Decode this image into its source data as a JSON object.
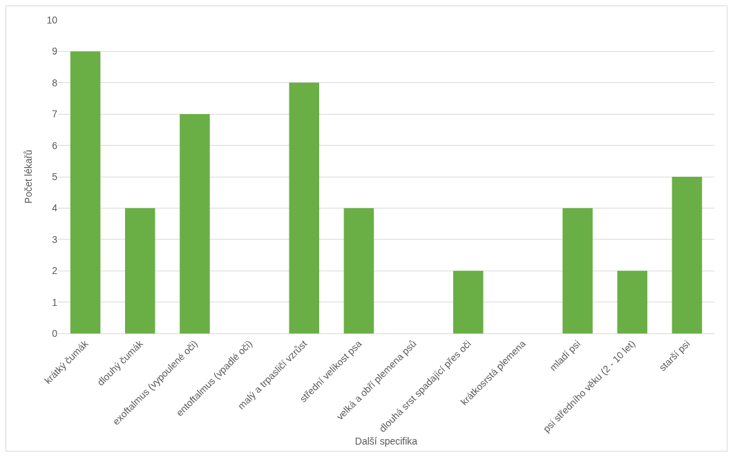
{
  "chart_data": {
    "type": "bar",
    "xlabel": "Další specifika",
    "ylabel": "Počet lékařů",
    "categories": [
      "krátký čumák",
      "dlouhý čumák",
      "exoftalmus (vypoulené oči)",
      "entoftalmus (vpadlé oči)",
      "malý a trpasličí vzrůst",
      "střední velikost psa",
      "velká a obří plemena psů",
      "dlouhá srst spadající přes oči",
      "krátkosrstá plemena",
      "mladí psi",
      "psi středního věku (2 - 10 let)",
      "starší psi"
    ],
    "values": [
      9,
      4,
      7,
      0,
      8,
      4,
      0,
      2,
      0,
      4,
      2,
      5
    ],
    "color": "#6aaf45",
    "ylim": [
      0,
      10
    ],
    "yticks": [
      0,
      1,
      2,
      3,
      4,
      5,
      6,
      7,
      8,
      9,
      10
    ],
    "grid": "y"
  }
}
